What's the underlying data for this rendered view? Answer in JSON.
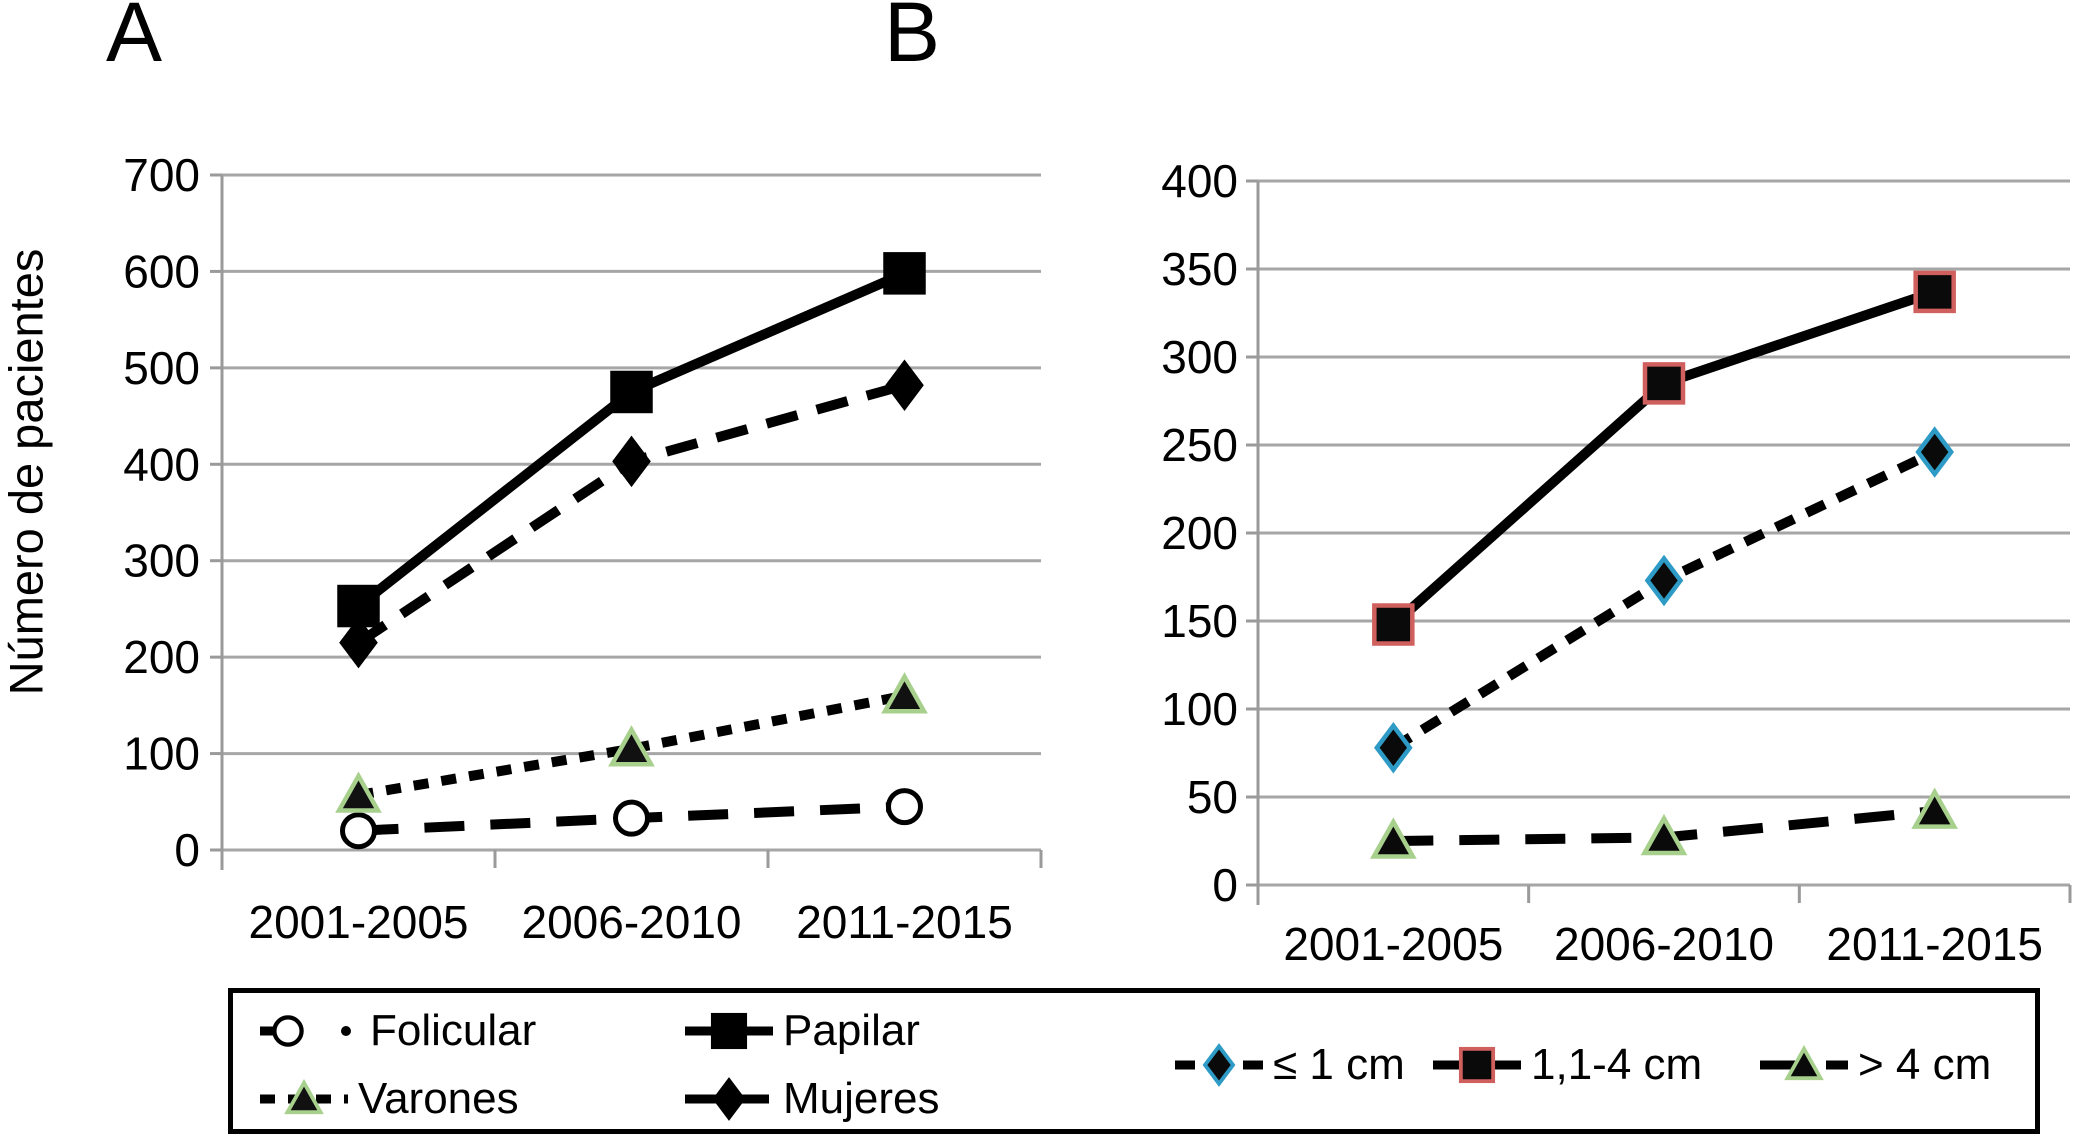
{
  "figure": {
    "background": "#ffffff"
  },
  "chart_data": [
    {
      "type": "line",
      "panel_label": "A",
      "title": "A",
      "ylabel": "Número de pacientes",
      "xlabel": "",
      "categories": [
        "2001-2005",
        "2006-2010",
        "2011-2015"
      ],
      "ylim": [
        0,
        700
      ],
      "ytick_step": 100,
      "yticks": [
        0,
        100,
        200,
        300,
        400,
        500,
        600,
        700
      ],
      "grid": true,
      "legend_position": "boxed-bottom-left",
      "series": [
        {
          "name": "Folicular",
          "values": [
            20,
            33,
            45
          ],
          "marker": "circle-open",
          "line_style": "long-dash",
          "color": "#000000",
          "marker_fill": "#ffffff",
          "marker_stroke": "#000000"
        },
        {
          "name": "Papilar",
          "values": [
            253,
            475,
            598
          ],
          "marker": "square",
          "line_style": "solid",
          "color": "#000000",
          "marker_fill": "#000000",
          "marker_stroke": "#000000"
        },
        {
          "name": "Varones",
          "values": [
            57,
            105,
            160
          ],
          "marker": "triangle",
          "line_style": "dotted",
          "color": "#000000",
          "marker_fill": "#111111",
          "marker_stroke": "#a8d08d"
        },
        {
          "name": "Mujeres",
          "values": [
            215,
            403,
            482
          ],
          "marker": "diamond",
          "line_style": "dash",
          "color": "#000000",
          "marker_fill": "#000000",
          "marker_stroke": "#000000"
        }
      ]
    },
    {
      "type": "line",
      "panel_label": "B",
      "title": "B",
      "ylabel": "",
      "xlabel": "",
      "categories": [
        "2001-2005",
        "2006-2010",
        "2011-2015"
      ],
      "ylim": [
        0,
        400
      ],
      "ytick_step": 50,
      "yticks": [
        0,
        50,
        100,
        150,
        200,
        250,
        300,
        350,
        400
      ],
      "grid": true,
      "legend_position": "boxed-bottom-right",
      "series": [
        {
          "name": "≤ 1 cm",
          "values": [
            78,
            173,
            246
          ],
          "marker": "diamond",
          "line_style": "short-dash",
          "color": "#000000",
          "marker_fill": "#0a0a0a",
          "marker_stroke": "#2e9bc6"
        },
        {
          "name": "1,1-4 cm",
          "values": [
            148,
            285,
            337
          ],
          "marker": "square",
          "line_style": "solid",
          "color": "#000000",
          "marker_fill": "#0a0a0a",
          "marker_stroke": "#d0605e"
        },
        {
          "name": "> 4 cm",
          "values": [
            25,
            27,
            42
          ],
          "marker": "triangle",
          "line_style": "long-dash",
          "color": "#000000",
          "marker_fill": "#0a0a0a",
          "marker_stroke": "#a8d08d"
        }
      ]
    }
  ],
  "colors": {
    "grid": "#a6a6a6",
    "axis": "#9a9a9a",
    "text": "#000000",
    "legend_border": "#000000",
    "series_line": "#000000",
    "triangle_outline": "#a8d08d",
    "diamond_outline_b": "#2e9bc6",
    "square_outline_b": "#d0605e"
  }
}
